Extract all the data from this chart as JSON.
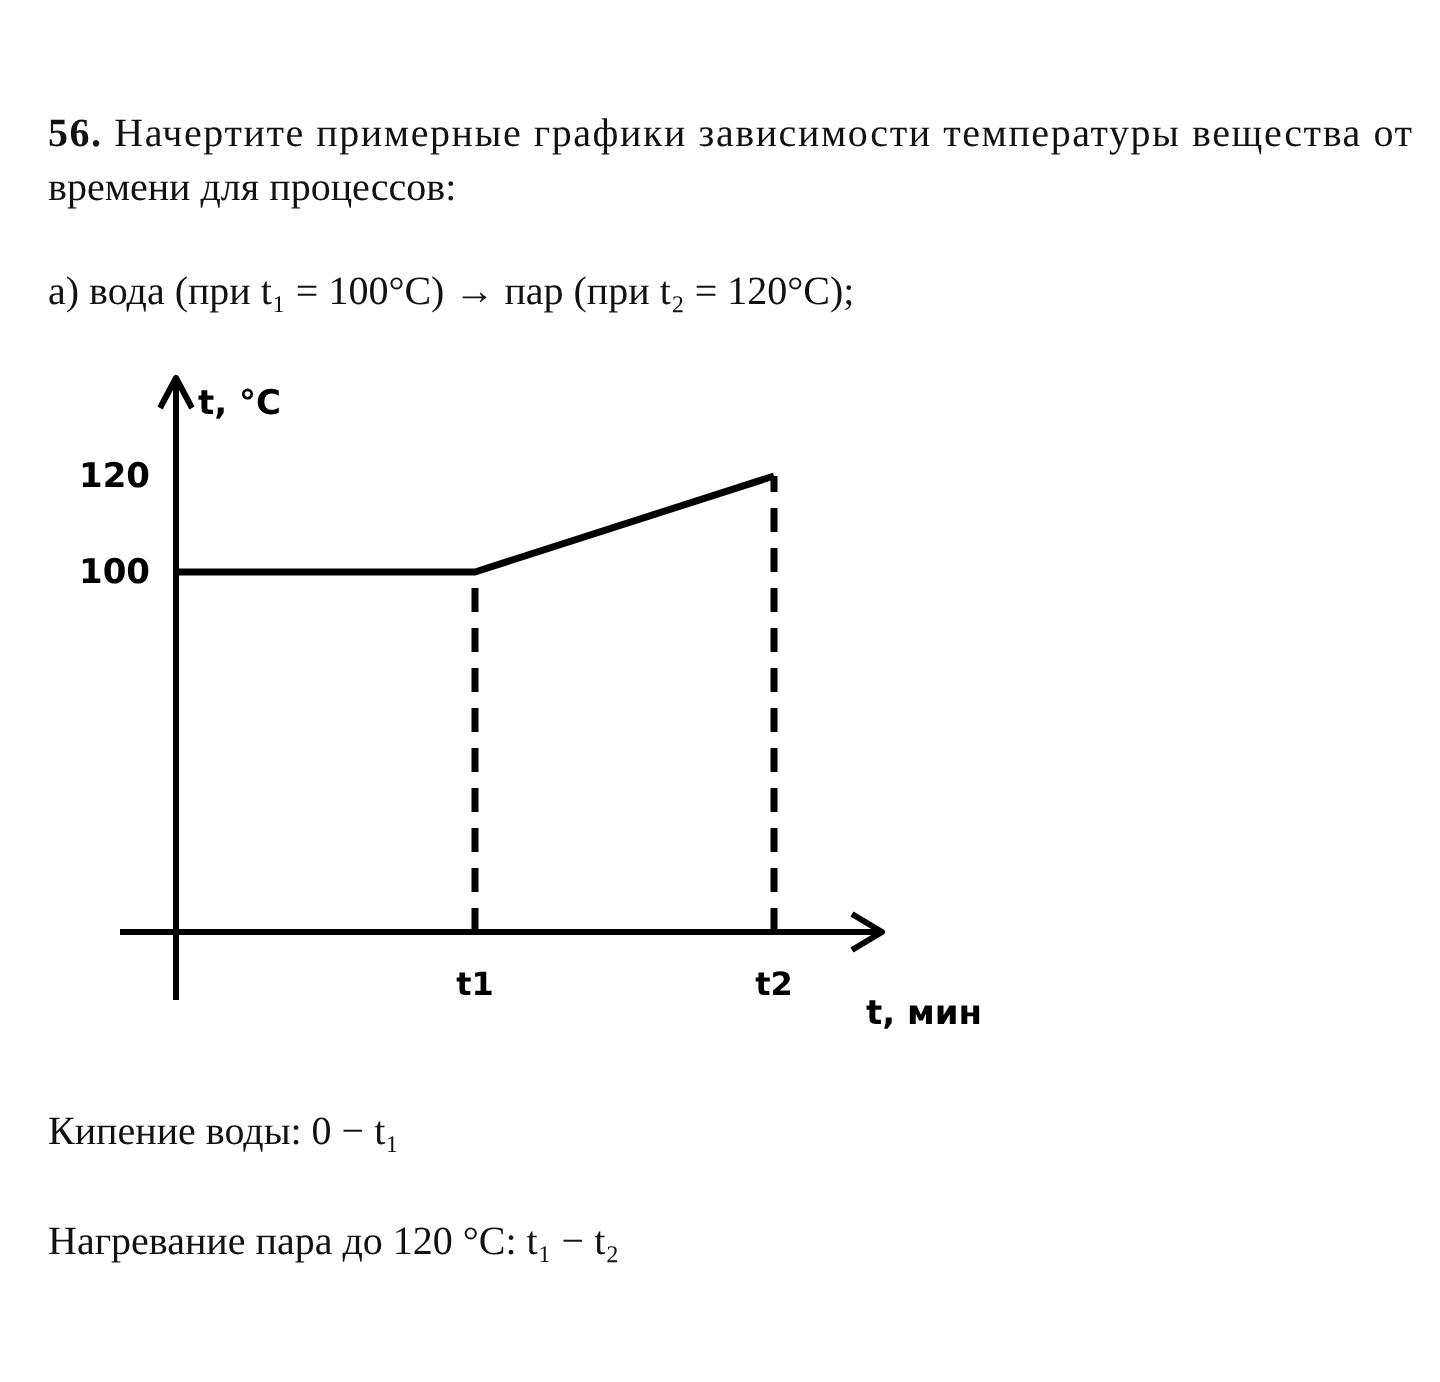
{
  "chart_data": {
    "type": "line",
    "title": "56. Начертите примерные графики зависимости температуры вещества от времени для процессов:",
    "subtitle": "а) вода (при t₁ = 100°C) → пар (при t₂ = 120°C);",
    "xlabel": "t, мин",
    "ylabel": "t, °C",
    "categories": [
      null,
      "t1",
      "t2"
    ],
    "series": [
      {
        "color": "#000000",
        "values": [
          100,
          100,
          120
        ]
      }
    ],
    "ylim": [
      25,
      140
    ],
    "yticks": [
      100,
      120
    ],
    "line_style": "solid",
    "ref_lines": [
      {
        "axis": "x",
        "value": "t1",
        "color": "#000000",
        "line_style": "dashed"
      },
      {
        "axis": "x",
        "value": "t2",
        "color": "#000000",
        "line_style": "dashed"
      }
    ],
    "annotations": [
      "Кипение воды: 0 − t₁",
      "Нагревание пара до 120 °C: t₁ − t₂"
    ]
  }
}
